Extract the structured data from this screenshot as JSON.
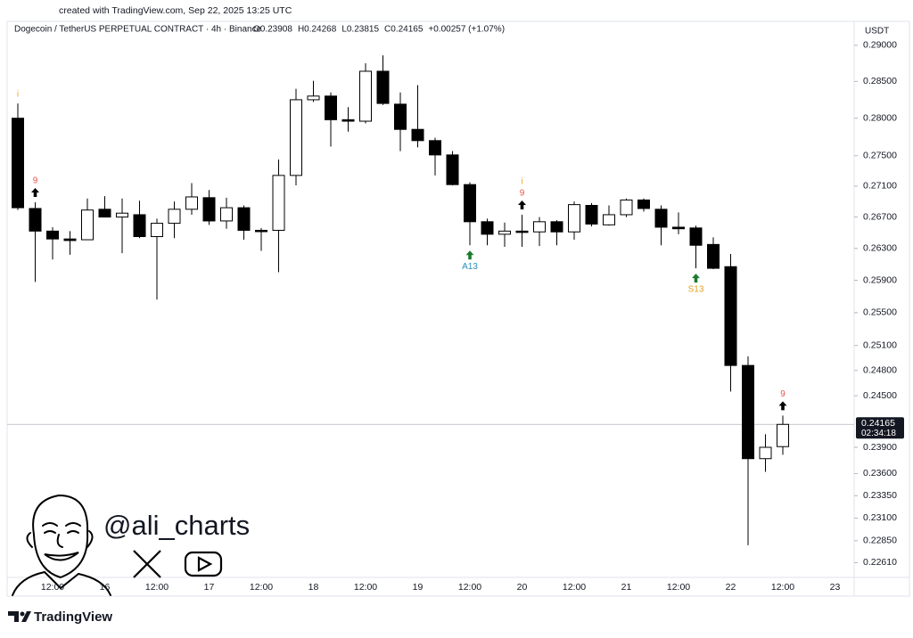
{
  "created": "created with TradingView.com, Sep 22, 2025 13:25 UTC",
  "footer": "TradingView",
  "watermark": "@ali_charts",
  "chart_data": {
    "type": "candlestick",
    "title": "Dogecoin / TetherUS PERPETUAL CONTRACT · 4h · Binance",
    "header_stats": [
      "O0.23908",
      "H0.24268",
      "L0.23815",
      "C0.24165",
      "+0.00257 (+1.07%)"
    ],
    "currency": "USDT",
    "categories": [
      null,
      null,
      "12:00",
      null,
      null,
      "16",
      null,
      null,
      "12:00",
      null,
      null,
      "17",
      null,
      null,
      "12:00",
      null,
      null,
      "18",
      null,
      null,
      "12:00",
      null,
      null,
      "19",
      null,
      null,
      "12:00",
      null,
      null,
      "20",
      null,
      null,
      "12:00",
      null,
      null,
      "21",
      null,
      null,
      "12:00",
      null,
      null,
      "22",
      null,
      null,
      "12:00",
      null,
      null,
      "23"
    ],
    "open": [
      0.28,
      0.2681,
      0.2652,
      0.2642,
      0.2641,
      0.268,
      0.267,
      0.2673,
      0.2645,
      0.2662,
      0.268,
      0.2695,
      0.2665,
      0.2682,
      0.2653,
      0.2653,
      0.2724,
      0.2825,
      0.283,
      0.2798,
      0.2796,
      0.2864,
      0.2819,
      0.2785,
      0.277,
      0.2751,
      0.2712,
      0.2664,
      0.2648,
      0.2652,
      0.2651,
      0.2664,
      0.2651,
      0.2685,
      0.266,
      0.2673,
      0.2692,
      0.268,
      0.2657,
      0.2656,
      0.2635,
      0.2607,
      0.2486,
      0.2377,
      0.23908,
      null,
      null,
      null
    ],
    "high": [
      0.282,
      0.2689,
      0.2657,
      0.2652,
      0.2694,
      0.2697,
      0.2694,
      0.2691,
      0.2668,
      0.269,
      0.2714,
      0.2705,
      0.2695,
      0.2685,
      0.2656,
      0.2745,
      0.284,
      0.2851,
      0.2835,
      0.2815,
      0.2875,
      0.2886,
      0.2835,
      0.2845,
      0.2774,
      0.2756,
      0.2715,
      0.2668,
      0.2663,
      0.2673,
      0.267,
      0.2666,
      0.269,
      0.2688,
      0.2685,
      0.2694,
      0.2694,
      0.2685,
      0.2676,
      0.2659,
      0.2644,
      0.2623,
      0.2497,
      0.2405,
      0.24268,
      null,
      null,
      null
    ],
    "low": [
      0.2679,
      0.2588,
      0.2616,
      0.2622,
      0.2641,
      0.267,
      0.2624,
      0.2643,
      0.2566,
      0.2643,
      0.2673,
      0.266,
      0.2655,
      0.2641,
      0.2627,
      0.26,
      0.2711,
      0.2822,
      0.2762,
      0.2782,
      0.2793,
      0.2818,
      0.2756,
      0.2761,
      0.2724,
      0.2711,
      0.2634,
      0.2634,
      0.2632,
      0.2632,
      0.2633,
      0.2634,
      0.2641,
      0.2658,
      0.2659,
      0.267,
      0.2677,
      0.2634,
      0.2648,
      0.2605,
      0.2604,
      0.2455,
      0.228,
      0.2362,
      0.23815,
      null,
      null,
      null
    ],
    "close": [
      0.2682,
      0.2652,
      0.2642,
      0.264,
      0.2679,
      0.267,
      0.2675,
      0.2645,
      0.2662,
      0.268,
      0.2696,
      0.2665,
      0.2682,
      0.2653,
      0.2652,
      0.2724,
      0.2825,
      0.283,
      0.2798,
      0.2796,
      0.2864,
      0.282,
      0.2785,
      0.277,
      0.2751,
      0.2712,
      0.2664,
      0.2648,
      0.2652,
      0.2651,
      0.2664,
      0.2651,
      0.2686,
      0.2661,
      0.2673,
      0.2692,
      0.2681,
      0.2657,
      0.2655,
      0.2634,
      0.2605,
      0.2486,
      0.2377,
      0.239,
      0.24165,
      null,
      null,
      null
    ],
    "up_color": "#ffffff",
    "down_color": "#000000",
    "wick_color": "#000000",
    "log_scale": true,
    "ylim": [
      0.2245,
      0.2926
    ],
    "yticks": [
      {
        "value": 0.29,
        "label": "0.29000"
      },
      {
        "value": 0.285,
        "label": "0.28500"
      },
      {
        "value": 0.28,
        "label": "0.28000"
      },
      {
        "value": 0.275,
        "label": "0.27500"
      },
      {
        "value": 0.271,
        "label": "0.27100"
      },
      {
        "value": 0.267,
        "label": "0.26700"
      },
      {
        "value": 0.263,
        "label": "0.26300"
      },
      {
        "value": 0.259,
        "label": "0.25900"
      },
      {
        "value": 0.255,
        "label": "0.25500"
      },
      {
        "value": 0.251,
        "label": "0.25100"
      },
      {
        "value": 0.248,
        "label": "0.24800"
      },
      {
        "value": 0.245,
        "label": "0.24500"
      },
      {
        "value": 0.239,
        "label": "0.23900"
      },
      {
        "value": 0.236,
        "label": "0.23600"
      },
      {
        "value": 0.2335,
        "label": "0.23350"
      },
      {
        "value": 0.231,
        "label": "0.23100"
      },
      {
        "value": 0.2285,
        "label": "0.22850"
      },
      {
        "value": 0.2261,
        "label": "0.22610"
      }
    ],
    "last_price": {
      "value": 0.24165,
      "label": "0.24165",
      "countdown": "02:34:18"
    },
    "signals": [
      {
        "candle": 0,
        "position": "above",
        "text": "i",
        "color": "#f5a623"
      },
      {
        "candle": 1,
        "position": "above",
        "arrow": "#000000",
        "text": "9",
        "color": "#e8544f"
      },
      {
        "candle": 26,
        "position": "below",
        "arrow": "#1b7a2f",
        "text": "A13",
        "color": "#2a8fbd"
      },
      {
        "candle": 29,
        "position": "above",
        "arrow": "#000000",
        "text": "9",
        "color": "#e8544f"
      },
      {
        "candle": 29,
        "position": "above",
        "text": "i",
        "color": "#f5a623"
      },
      {
        "candle": 39,
        "position": "below",
        "arrow": "#1b7a2f",
        "text": "S13",
        "color": "#e0a020"
      },
      {
        "candle": 44,
        "position": "above",
        "arrow": "#000000",
        "text": "9",
        "color": "#e8544f"
      }
    ]
  }
}
